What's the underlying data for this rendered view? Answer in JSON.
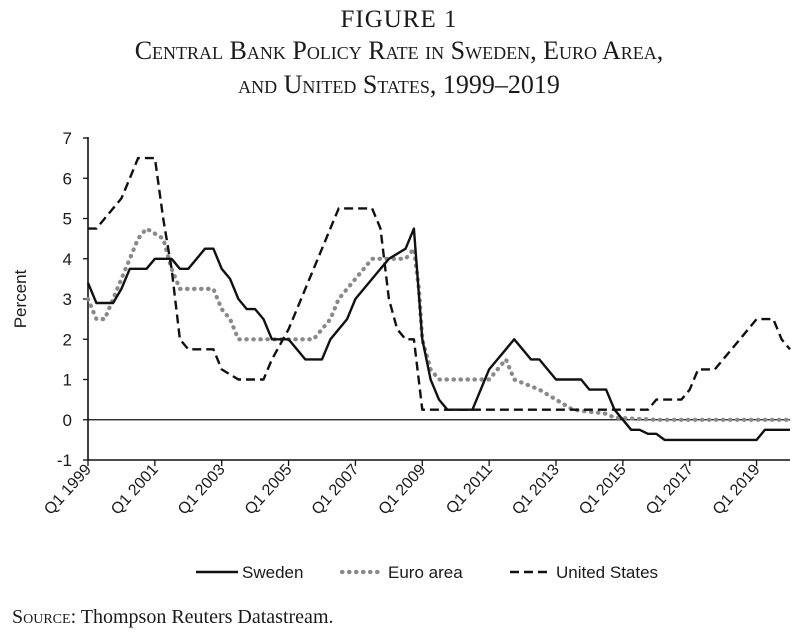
{
  "figure": {
    "label": "FIGURE 1",
    "title_line1": "Central Bank Policy Rate in Sweden, Euro Area,",
    "title_line2": "and United States, 1999–2019"
  },
  "source": {
    "label": "Source:",
    "text": " Thompson Reuters Datastream."
  },
  "chart_data": {
    "type": "line",
    "title": "Central Bank Policy Rate in Sweden, Euro Area, and United States, 1999–2019",
    "xlabel": "",
    "ylabel": "Percent",
    "xlim": [
      1999.0,
      2020.0
    ],
    "ylim": [
      -1,
      7
    ],
    "yticks": [
      -1,
      0,
      1,
      2,
      3,
      4,
      5,
      6,
      7
    ],
    "xticks": [
      {
        "x": 1999,
        "label": "Q1 1999"
      },
      {
        "x": 2001,
        "label": "Q1 2001"
      },
      {
        "x": 2003,
        "label": "Q1 2003"
      },
      {
        "x": 2005,
        "label": "Q1 2005"
      },
      {
        "x": 2007,
        "label": "Q1 2007"
      },
      {
        "x": 2009,
        "label": "Q1 2009"
      },
      {
        "x": 2011,
        "label": "Q1 2011"
      },
      {
        "x": 2013,
        "label": "Q1 2013"
      },
      {
        "x": 2015,
        "label": "Q1 2015"
      },
      {
        "x": 2017,
        "label": "Q1 2017"
      },
      {
        "x": 2019,
        "label": "Q1 2019"
      }
    ],
    "grid": false,
    "legend_position": "bottom",
    "series": [
      {
        "name": "Sweden",
        "style": "solid",
        "color": "#111111",
        "points": [
          [
            1999.0,
            3.4
          ],
          [
            1999.25,
            2.9
          ],
          [
            1999.75,
            2.9
          ],
          [
            2000.0,
            3.25
          ],
          [
            2000.25,
            3.75
          ],
          [
            2000.75,
            3.75
          ],
          [
            2001.0,
            4.0
          ],
          [
            2001.5,
            4.0
          ],
          [
            2001.75,
            3.75
          ],
          [
            2002.0,
            3.75
          ],
          [
            2002.5,
            4.25
          ],
          [
            2002.75,
            4.25
          ],
          [
            2003.0,
            3.75
          ],
          [
            2003.25,
            3.5
          ],
          [
            2003.5,
            3.0
          ],
          [
            2003.75,
            2.75
          ],
          [
            2004.0,
            2.75
          ],
          [
            2004.25,
            2.5
          ],
          [
            2004.5,
            2.0
          ],
          [
            2005.0,
            2.0
          ],
          [
            2005.5,
            1.5
          ],
          [
            2006.0,
            1.5
          ],
          [
            2006.25,
            2.0
          ],
          [
            2006.75,
            2.5
          ],
          [
            2007.0,
            3.0
          ],
          [
            2007.5,
            3.5
          ],
          [
            2008.0,
            4.0
          ],
          [
            2008.5,
            4.25
          ],
          [
            2008.75,
            4.75
          ],
          [
            2009.0,
            2.0
          ],
          [
            2009.25,
            1.0
          ],
          [
            2009.5,
            0.5
          ],
          [
            2009.75,
            0.25
          ],
          [
            2010.5,
            0.25
          ],
          [
            2011.0,
            1.25
          ],
          [
            2011.5,
            1.75
          ],
          [
            2011.75,
            2.0
          ],
          [
            2012.0,
            1.75
          ],
          [
            2012.25,
            1.5
          ],
          [
            2012.5,
            1.5
          ],
          [
            2012.75,
            1.25
          ],
          [
            2013.0,
            1.0
          ],
          [
            2013.75,
            1.0
          ],
          [
            2014.0,
            0.75
          ],
          [
            2014.5,
            0.75
          ],
          [
            2014.75,
            0.25
          ],
          [
            2015.0,
            0.0
          ],
          [
            2015.25,
            -0.25
          ],
          [
            2015.5,
            -0.25
          ],
          [
            2015.75,
            -0.35
          ],
          [
            2016.0,
            -0.35
          ],
          [
            2016.25,
            -0.5
          ],
          [
            2019.0,
            -0.5
          ],
          [
            2019.25,
            -0.25
          ],
          [
            2020.0,
            -0.25
          ]
        ]
      },
      {
        "name": "Euro area",
        "style": "dotted",
        "color": "#8a8a8a",
        "points": [
          [
            1999.0,
            3.0
          ],
          [
            1999.25,
            2.5
          ],
          [
            1999.5,
            2.5
          ],
          [
            1999.75,
            3.0
          ],
          [
            2000.0,
            3.5
          ],
          [
            2000.25,
            4.0
          ],
          [
            2000.5,
            4.5
          ],
          [
            2000.75,
            4.75
          ],
          [
            2001.25,
            4.5
          ],
          [
            2001.5,
            3.75
          ],
          [
            2001.75,
            3.25
          ],
          [
            2002.75,
            3.25
          ],
          [
            2003.0,
            2.75
          ],
          [
            2003.25,
            2.5
          ],
          [
            2003.5,
            2.0
          ],
          [
            2005.75,
            2.0
          ],
          [
            2006.0,
            2.25
          ],
          [
            2006.25,
            2.5
          ],
          [
            2006.5,
            3.0
          ],
          [
            2007.0,
            3.5
          ],
          [
            2007.5,
            4.0
          ],
          [
            2008.5,
            4.0
          ],
          [
            2008.75,
            4.25
          ],
          [
            2008.9,
            3.25
          ],
          [
            2009.0,
            2.0
          ],
          [
            2009.25,
            1.25
          ],
          [
            2009.5,
            1.0
          ],
          [
            2011.0,
            1.0
          ],
          [
            2011.25,
            1.25
          ],
          [
            2011.5,
            1.5
          ],
          [
            2011.75,
            1.0
          ],
          [
            2012.5,
            0.75
          ],
          [
            2013.0,
            0.5
          ],
          [
            2013.5,
            0.25
          ],
          [
            2014.5,
            0.15
          ],
          [
            2014.75,
            0.05
          ],
          [
            2016.0,
            0.0
          ],
          [
            2020.0,
            0.0
          ]
        ]
      },
      {
        "name": "United States",
        "style": "dashed",
        "color": "#111111",
        "points": [
          [
            1999.0,
            4.75
          ],
          [
            1999.25,
            4.75
          ],
          [
            1999.5,
            5.0
          ],
          [
            2000.0,
            5.5
          ],
          [
            2000.25,
            6.0
          ],
          [
            2000.5,
            6.5
          ],
          [
            2001.0,
            6.5
          ],
          [
            2001.25,
            5.0
          ],
          [
            2001.5,
            3.75
          ],
          [
            2001.75,
            2.0
          ],
          [
            2002.0,
            1.75
          ],
          [
            2002.75,
            1.75
          ],
          [
            2003.0,
            1.25
          ],
          [
            2003.5,
            1.0
          ],
          [
            2004.25,
            1.0
          ],
          [
            2004.5,
            1.5
          ],
          [
            2005.0,
            2.25
          ],
          [
            2005.5,
            3.25
          ],
          [
            2006.0,
            4.25
          ],
          [
            2006.5,
            5.25
          ],
          [
            2007.5,
            5.25
          ],
          [
            2007.75,
            4.75
          ],
          [
            2008.0,
            3.0
          ],
          [
            2008.25,
            2.25
          ],
          [
            2008.5,
            2.0
          ],
          [
            2008.75,
            2.0
          ],
          [
            2009.0,
            0.25
          ],
          [
            2015.75,
            0.25
          ],
          [
            2016.0,
            0.5
          ],
          [
            2016.75,
            0.5
          ],
          [
            2017.0,
            0.75
          ],
          [
            2017.25,
            1.25
          ],
          [
            2017.75,
            1.25
          ],
          [
            2018.0,
            1.5
          ],
          [
            2018.5,
            2.0
          ],
          [
            2019.0,
            2.5
          ],
          [
            2019.5,
            2.5
          ],
          [
            2019.75,
            2.0
          ],
          [
            2020.0,
            1.75
          ]
        ]
      }
    ]
  }
}
